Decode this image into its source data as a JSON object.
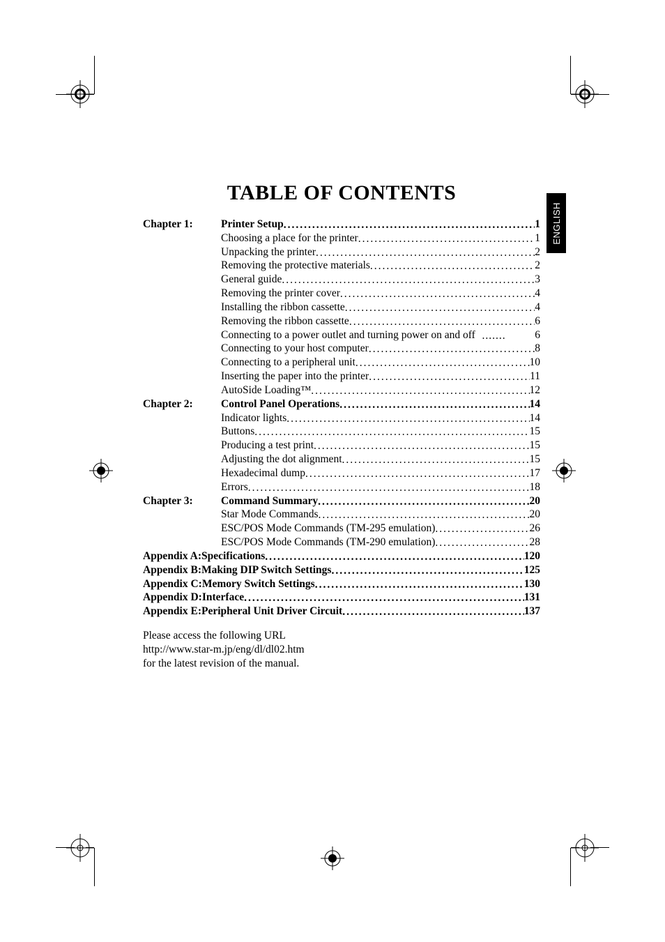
{
  "side_tab": "ENGLISH",
  "title": "TABLE OF CONTENTS",
  "toc": [
    {
      "type": "chapter",
      "chapter": "Chapter 1:",
      "text": "Printer Setup",
      "page": "1"
    },
    {
      "type": "item",
      "text": "Choosing a place for the printer",
      "page": "1"
    },
    {
      "type": "item",
      "text": "Unpacking the printer",
      "page": "2"
    },
    {
      "type": "item",
      "text": "Removing the protective materials",
      "page": "2"
    },
    {
      "type": "item",
      "text": "General guide",
      "page": "3"
    },
    {
      "type": "item",
      "text": "Removing the printer cover",
      "page": "4"
    },
    {
      "type": "item",
      "text": "Installing the ribbon cassette",
      "page": "4"
    },
    {
      "type": "item",
      "text": "Removing the ribbon cassette",
      "page": "6"
    },
    {
      "type": "item-short",
      "text": "Connecting to a power outlet and turning power on and off",
      "page": "6"
    },
    {
      "type": "item",
      "text": "Connecting to your host computer",
      "page": "8"
    },
    {
      "type": "item",
      "text": "Connecting to a peripheral unit",
      "page": "10"
    },
    {
      "type": "item",
      "text": "Inserting the paper into the printer",
      "page": "11"
    },
    {
      "type": "item",
      "text": "AutoSide Loading™",
      "page": "12"
    },
    {
      "type": "chapter",
      "chapter": "Chapter 2:",
      "text": "Control Panel Operations",
      "page": "14"
    },
    {
      "type": "item",
      "text": "Indicator lights",
      "page": "14"
    },
    {
      "type": "item",
      "text": "Buttons",
      "page": "15"
    },
    {
      "type": "item",
      "text": "Producing a test print",
      "page": "15"
    },
    {
      "type": "item",
      "text": "Adjusting the dot alignment",
      "page": "15"
    },
    {
      "type": "item",
      "text": "Hexadecimal dump",
      "page": "17"
    },
    {
      "type": "item",
      "text": "Errors",
      "page": "18"
    },
    {
      "type": "chapter",
      "chapter": "Chapter 3:",
      "text": "Command Summary",
      "page": "20"
    },
    {
      "type": "item",
      "text": "Star Mode Commands",
      "page": "20"
    },
    {
      "type": "item",
      "text": "ESC/POS Mode Commands (TM-295 emulation)",
      "page": "26"
    },
    {
      "type": "item",
      "text": "ESC/POS Mode Commands (TM-290 emulation)",
      "page": "28"
    },
    {
      "type": "appendix",
      "label": "Appendix A: ",
      "text": "Specifications",
      "page": "120"
    },
    {
      "type": "appendix",
      "label": "Appendix B: ",
      "text": "Making DIP Switch Settings",
      "page": "125"
    },
    {
      "type": "appendix",
      "label": "Appendix C: ",
      "text": "Memory Switch Settings",
      "page": "130"
    },
    {
      "type": "appendix",
      "label": "Appendix D: ",
      "text": "Interface",
      "page": "131"
    },
    {
      "type": "appendix",
      "label": "Appendix E: ",
      "text": "Peripheral Unit Driver Circuit",
      "page": "137"
    }
  ],
  "url_block": {
    "line1": "Please access the following URL",
    "line2": "http://www.star-m.jp/eng/dl/dl02.htm",
    "line3": "for the latest revision of the manual."
  }
}
